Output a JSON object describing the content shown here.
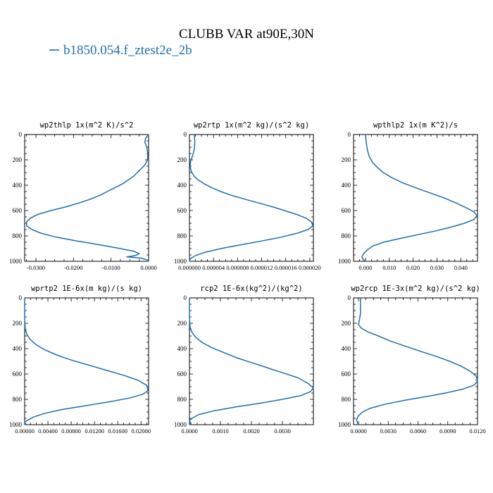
{
  "figure": {
    "title": "CLUBB VAR at90E,30N",
    "legend": {
      "label": "b1850.054.f_ztest2e_2b",
      "color": "#1f6eb0"
    }
  },
  "chart_data": [
    {
      "type": "line",
      "title": "wp2thlp  1x(m^2 K)/s^2",
      "xlim": [
        -0.033,
        0.0
      ],
      "ylim": [
        0,
        1000
      ],
      "y_inverted": true,
      "xticks": [
        "-0.0300",
        "-0.0200",
        "-0.0100",
        "0.0000"
      ],
      "xtick_values": [
        -0.03,
        -0.02,
        -0.01,
        0.0
      ],
      "yticks": [
        "0",
        "200",
        "400",
        "600",
        "800",
        "1000"
      ],
      "series": [
        {
          "color": "#1f6eb0",
          "points": [
            [
              0.0,
              0
            ],
            [
              -0.0008,
              30
            ],
            [
              -0.001,
              60
            ],
            [
              -0.0005,
              100
            ],
            [
              -0.0002,
              150
            ],
            [
              -0.0003,
              200
            ],
            [
              -0.001,
              240
            ],
            [
              -0.002,
              270
            ],
            [
              -0.003,
              300
            ],
            [
              -0.004,
              330
            ],
            [
              -0.0055,
              360
            ],
            [
              -0.007,
              390
            ],
            [
              -0.009,
              420
            ],
            [
              -0.011,
              450
            ],
            [
              -0.013,
              480
            ],
            [
              -0.0155,
              510
            ],
            [
              -0.0185,
              540
            ],
            [
              -0.022,
              570
            ],
            [
              -0.026,
              600
            ],
            [
              -0.0295,
              630
            ],
            [
              -0.0315,
              660
            ],
            [
              -0.0325,
              690
            ],
            [
              -0.0325,
              720
            ],
            [
              -0.031,
              750
            ],
            [
              -0.0285,
              780
            ],
            [
              -0.0245,
              810
            ],
            [
              -0.019,
              840
            ],
            [
              -0.013,
              870
            ],
            [
              -0.0075,
              900
            ],
            [
              -0.004,
              920
            ],
            [
              -0.0025,
              940
            ],
            [
              -0.0035,
              955
            ],
            [
              -0.0058,
              965
            ],
            [
              -0.002,
              975
            ],
            [
              -0.0003,
              990
            ],
            [
              0.0,
              1000
            ]
          ]
        }
      ]
    },
    {
      "type": "line",
      "title": "wp2rtp  1x(m^2 kg)/(s^2 kg)",
      "xlim": [
        0.0,
        2.06e-05
      ],
      "ylim": [
        0,
        1000
      ],
      "y_inverted": true,
      "xticks": [
        "0.000000",
        "0.000004",
        "0.000008",
        "0.000012",
        "0.000016",
        "0.000020"
      ],
      "xtick_values": [
        0.0,
        4e-06,
        8e-06,
        1.2e-05,
        1.6e-05,
        2e-05
      ],
      "yticks": [
        "0",
        "200",
        "400",
        "600",
        "800",
        "1000"
      ],
      "series": [
        {
          "color": "#1f6eb0",
          "points": [
            [
              8e-07,
              0
            ],
            [
              9e-07,
              60
            ],
            [
              8e-07,
              120
            ],
            [
              5e-07,
              170
            ],
            [
              2e-07,
              210
            ],
            [
              1e-07,
              250
            ],
            [
              3e-07,
              290
            ],
            [
              8e-07,
              330
            ],
            [
              1.5e-06,
              360
            ],
            [
              2.5e-06,
              390
            ],
            [
              3.7e-06,
              420
            ],
            [
              5.2e-06,
              450
            ],
            [
              7e-06,
              480
            ],
            [
              9.2e-06,
              510
            ],
            [
              1.15e-05,
              540
            ],
            [
              1.38e-05,
              570
            ],
            [
              1.58e-05,
              600
            ],
            [
              1.78e-05,
              630
            ],
            [
              1.94e-05,
              660
            ],
            [
              2.03e-05,
              690
            ],
            [
              2.05e-05,
              720
            ],
            [
              1.97e-05,
              750
            ],
            [
              1.78e-05,
              780
            ],
            [
              1.52e-05,
              810
            ],
            [
              1.2e-05,
              840
            ],
            [
              8.5e-06,
              870
            ],
            [
              5.2e-06,
              900
            ],
            [
              2.5e-06,
              930
            ],
            [
              1e-06,
              955
            ],
            [
              3e-07,
              975
            ],
            [
              0.0,
              990
            ],
            [
              1e-07,
              1000
            ]
          ]
        }
      ]
    },
    {
      "type": "line",
      "title": "wpthlp2  1x(m K^2)/s",
      "xlim": [
        -0.005,
        0.047
      ],
      "ylim": [
        0,
        1000
      ],
      "y_inverted": true,
      "xticks": [
        "0.000",
        "0.010",
        "0.020",
        "0.030",
        "0.040"
      ],
      "xtick_values": [
        0.0,
        0.01,
        0.02,
        0.03,
        0.04
      ],
      "yticks": [
        "0",
        "200",
        "400",
        "600",
        "800",
        "1000"
      ],
      "series": [
        {
          "color": "#1f6eb0",
          "points": [
            [
              0.0,
              0
            ],
            [
              0.0003,
              60
            ],
            [
              0.0008,
              120
            ],
            [
              0.0015,
              170
            ],
            [
              0.003,
              220
            ],
            [
              0.005,
              260
            ],
            [
              0.0075,
              300
            ],
            [
              0.011,
              340
            ],
            [
              0.0155,
              380
            ],
            [
              0.021,
              420
            ],
            [
              0.027,
              460
            ],
            [
              0.033,
              500
            ],
            [
              0.038,
              540
            ],
            [
              0.0425,
              580
            ],
            [
              0.0455,
              610
            ],
            [
              0.0468,
              640
            ],
            [
              0.0455,
              670
            ],
            [
              0.0415,
              700
            ],
            [
              0.036,
              730
            ],
            [
              0.0295,
              760
            ],
            [
              0.022,
              790
            ],
            [
              0.0145,
              820
            ],
            [
              0.0075,
              850
            ],
            [
              0.003,
              880
            ],
            [
              0.0008,
              910
            ],
            [
              -0.0008,
              940
            ],
            [
              -0.0015,
              965
            ],
            [
              -0.001,
              985
            ],
            [
              0.0,
              1000
            ]
          ]
        }
      ]
    },
    {
      "type": "line",
      "title": "wprtp2  1E-6x(m kg)/(s kg)",
      "xlim": [
        0.0,
        0.0213
      ],
      "ylim": [
        0,
        1000
      ],
      "y_inverted": true,
      "xticks": [
        "0.00000",
        "0.00400",
        "0.00800",
        "0.01200",
        "0.01600",
        "0.02000"
      ],
      "xtick_values": [
        0.0,
        0.004,
        0.008,
        0.012,
        0.016,
        0.02
      ],
      "yticks": [
        "0",
        "200",
        "400",
        "600",
        "800",
        "1000"
      ],
      "series": [
        {
          "color": "#1f6eb0",
          "points": [
            [
              0.0,
              0
            ],
            [
              0.0,
              150
            ],
            [
              0.0001,
              250
            ],
            [
              0.0004,
              290
            ],
            [
              0.001,
              330
            ],
            [
              0.002,
              370
            ],
            [
              0.0035,
              410
            ],
            [
              0.0055,
              450
            ],
            [
              0.008,
              490
            ],
            [
              0.011,
              530
            ],
            [
              0.014,
              570
            ],
            [
              0.017,
              610
            ],
            [
              0.0195,
              650
            ],
            [
              0.021,
              690
            ],
            [
              0.0212,
              730
            ],
            [
              0.0203,
              760
            ],
            [
              0.018,
              790
            ],
            [
              0.0145,
              820
            ],
            [
              0.0105,
              850
            ],
            [
              0.0065,
              880
            ],
            [
              0.0035,
              910
            ],
            [
              0.0015,
              940
            ],
            [
              0.0005,
              965
            ],
            [
              0.0,
              980
            ],
            [
              0.0002,
              995
            ],
            [
              0.0,
              1000
            ]
          ]
        }
      ]
    },
    {
      "type": "line",
      "title": "rcp2  1E-6x(kg^2)/(kg^2)",
      "xlim": [
        0.0,
        0.004
      ],
      "ylim": [
        0,
        1000
      ],
      "y_inverted": true,
      "xticks": [
        "0.0000",
        "0.0010",
        "0.0020",
        "0.0030"
      ],
      "xtick_values": [
        0.0,
        0.001,
        0.002,
        0.003
      ],
      "yticks": [
        "0",
        "200",
        "400",
        "600",
        "800",
        "1000"
      ],
      "series": [
        {
          "color": "#1f6eb0",
          "points": [
            [
              0.0,
              0
            ],
            [
              0.0,
              150
            ],
            [
              2e-05,
              230
            ],
            [
              8e-05,
              270
            ],
            [
              0.0002,
              310
            ],
            [
              0.0004,
              350
            ],
            [
              0.0007,
              390
            ],
            [
              0.0011,
              430
            ],
            [
              0.0015,
              470
            ],
            [
              0.002,
              510
            ],
            [
              0.0025,
              550
            ],
            [
              0.003,
              590
            ],
            [
              0.0035,
              630
            ],
            [
              0.0038,
              670
            ],
            [
              0.004,
              710
            ],
            [
              0.0039,
              740
            ],
            [
              0.0036,
              770
            ],
            [
              0.003,
              800
            ],
            [
              0.0023,
              830
            ],
            [
              0.0015,
              860
            ],
            [
              0.0008,
              890
            ],
            [
              0.0003,
              920
            ],
            [
              8e-05,
              950
            ],
            [
              0.0,
              970
            ],
            [
              5e-05,
              990
            ],
            [
              0.0,
              1000
            ]
          ]
        }
      ]
    },
    {
      "type": "line",
      "title": "wp2rcp  1E-3x(m^2 kg)/(s^2 kg)",
      "xlim": [
        -0.0005,
        0.012
      ],
      "ylim": [
        0,
        1000
      ],
      "y_inverted": true,
      "xticks": [
        "0.0000",
        "0.0030",
        "0.0060",
        "0.0090",
        "0.0120"
      ],
      "xtick_values": [
        0.0,
        0.003,
        0.006,
        0.009,
        0.012
      ],
      "yticks": [
        "0",
        "200",
        "400",
        "600",
        "800",
        "1000"
      ],
      "series": [
        {
          "color": "#1f6eb0",
          "points": [
            [
              0.0002,
              0
            ],
            [
              0.0002,
              60
            ],
            [
              0.0002,
              120
            ],
            [
              0.0001,
              170
            ],
            [
              0.0,
              210
            ],
            [
              0.0003,
              240
            ],
            [
              0.001,
              270
            ],
            [
              0.002,
              300
            ],
            [
              0.0032,
              340
            ],
            [
              0.0047,
              380
            ],
            [
              0.0062,
              420
            ],
            [
              0.0078,
              460
            ],
            [
              0.0092,
              500
            ],
            [
              0.0104,
              540
            ],
            [
              0.0113,
              580
            ],
            [
              0.0119,
              620
            ],
            [
              0.012,
              660
            ],
            [
              0.0116,
              690
            ],
            [
              0.0105,
              720
            ],
            [
              0.0088,
              750
            ],
            [
              0.0067,
              780
            ],
            [
              0.0045,
              810
            ],
            [
              0.0026,
              840
            ],
            [
              0.0012,
              870
            ],
            [
              0.0004,
              900
            ],
            [
              0.0,
              930
            ],
            [
              -0.0002,
              960
            ],
            [
              -0.0001,
              985
            ],
            [
              0.0,
              1000
            ]
          ]
        }
      ]
    }
  ]
}
